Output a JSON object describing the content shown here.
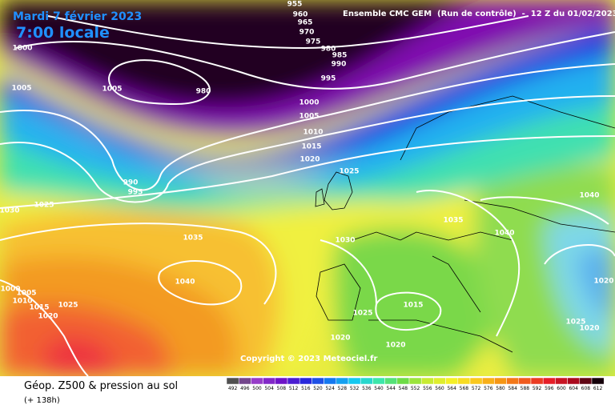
{
  "header": {
    "date": "Mardi 7 février 2023",
    "time": "7:00 locale",
    "model": "Ensemble CMC GEM  (Run de contrôle)  -  12 Z du 01/02/2023"
  },
  "copyright": "Copyright © 2023 Meteociel.fr",
  "footer": {
    "title": "Géop. Z500 & pression au sol",
    "lead": "(+ 138h)"
  },
  "isobar_labels": [
    955,
    960,
    965,
    970,
    975,
    980,
    985,
    990,
    995,
    1000,
    1005,
    1010,
    1015,
    1020,
    1025,
    1000,
    1005,
    1005,
    980,
    990,
    995,
    1030,
    1025,
    1035,
    1040,
    1030,
    1035,
    1040,
    1040,
    1020,
    1025,
    1020,
    1015,
    1025,
    1020,
    1020,
    1000,
    1005,
    1010,
    1015,
    1020,
    1025
  ],
  "legend_values": [
    492,
    496,
    500,
    504,
    508,
    512,
    516,
    520,
    524,
    528,
    532,
    536,
    540,
    544,
    548,
    552,
    556,
    560,
    564,
    568,
    572,
    576,
    580,
    584,
    588,
    592,
    596,
    600,
    604,
    608,
    612
  ]
}
